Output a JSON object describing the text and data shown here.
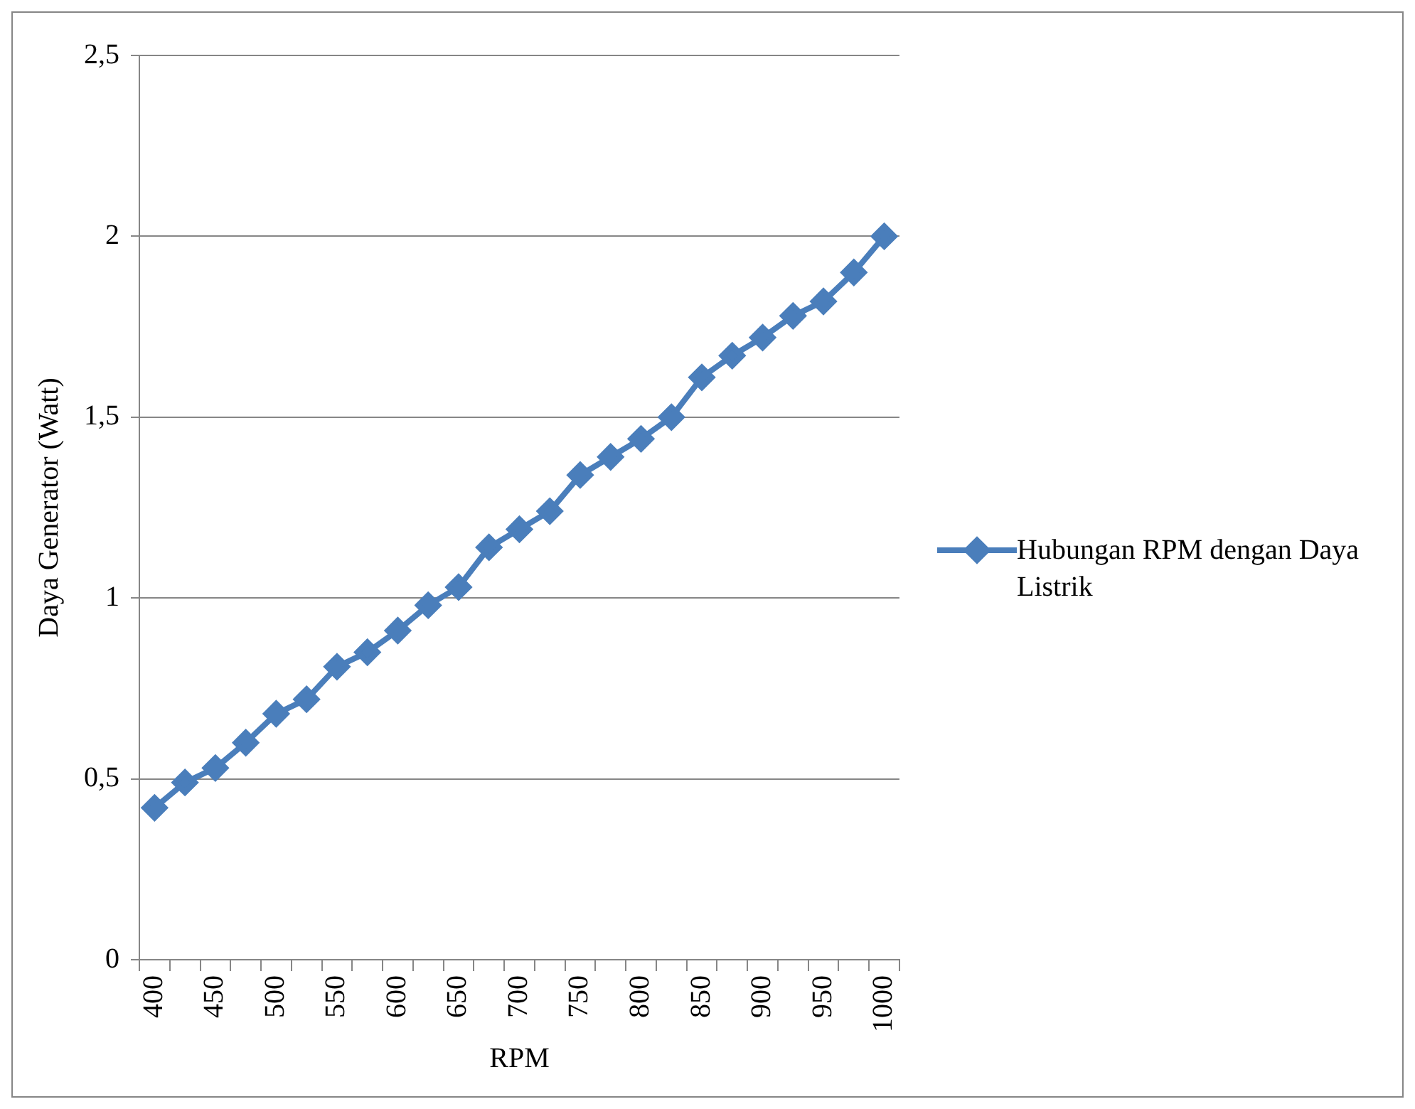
{
  "chart_data": {
    "type": "line",
    "xlabel": "RPM",
    "ylabel": "Daya Generator (Watt)",
    "categories": [
      "400",
      null,
      "450",
      null,
      "500",
      null,
      "550",
      null,
      "600",
      null,
      "650",
      null,
      "700",
      null,
      "750",
      null,
      "800",
      null,
      "850",
      null,
      "900",
      null,
      "950",
      null,
      "1000"
    ],
    "series": [
      {
        "name": "Hubungan RPM dengan Daya Listrik",
        "color": "#4a7ebb",
        "values": [
          0.42,
          0.49,
          0.53,
          0.6,
          0.68,
          0.72,
          0.81,
          0.85,
          0.91,
          0.98,
          1.03,
          1.14,
          1.19,
          1.24,
          1.34,
          1.39,
          1.44,
          1.5,
          1.61,
          1.67,
          1.72,
          1.78,
          1.82,
          1.9,
          2.0
        ]
      }
    ],
    "ylim": [
      0,
      2.5
    ],
    "yticks": [
      0,
      {
        "value": 0.5,
        "label": "0,5"
      },
      1,
      {
        "value": 1.5,
        "label": "1,5"
      },
      2,
      {
        "value": 2.5,
        "label": "2,5"
      }
    ],
    "grid": "y",
    "legend": "right",
    "marker": "diamond",
    "line_style": "solid"
  }
}
